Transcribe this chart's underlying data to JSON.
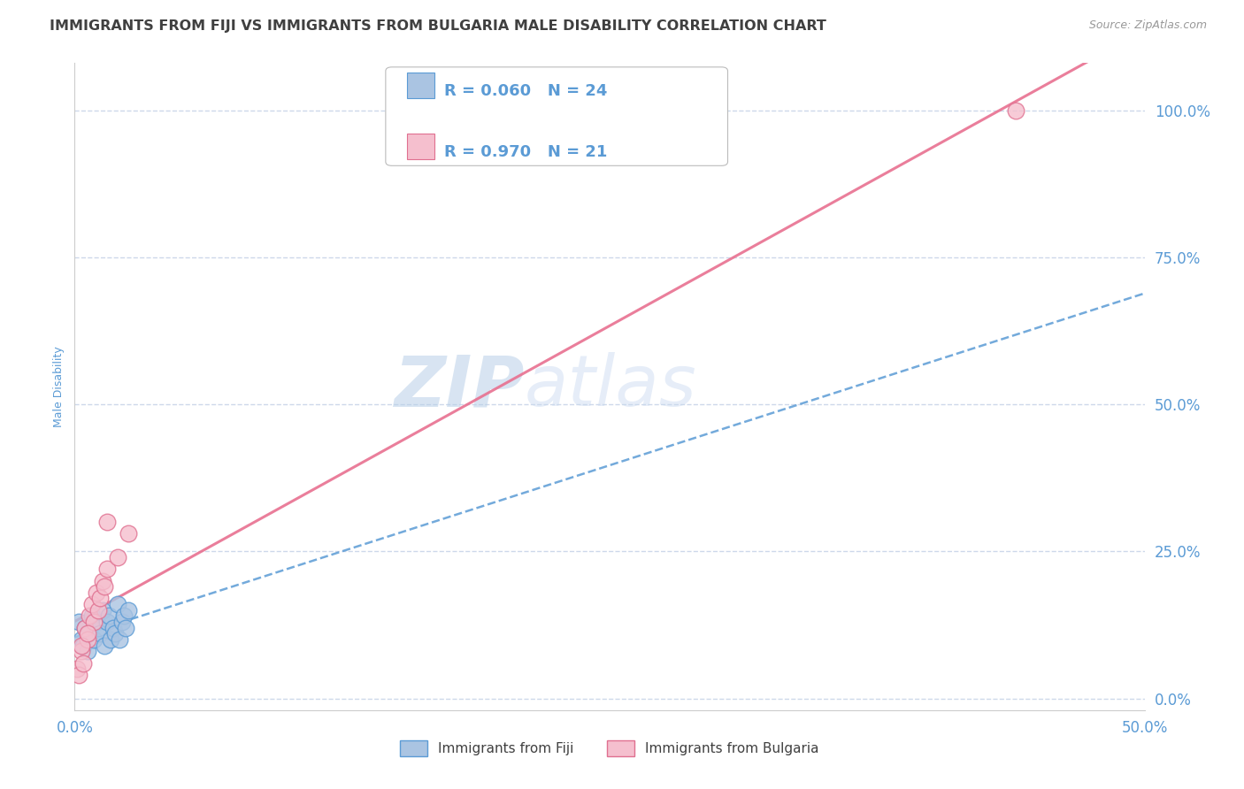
{
  "title": "IMMIGRANTS FROM FIJI VS IMMIGRANTS FROM BULGARIA MALE DISABILITY CORRELATION CHART",
  "source": "Source: ZipAtlas.com",
  "ylabel": "Male Disability",
  "xlim": [
    0.0,
    0.5
  ],
  "ylim": [
    -0.02,
    1.08
  ],
  "fiji_R": 0.06,
  "fiji_N": 24,
  "bulgaria_R": 0.97,
  "bulgaria_N": 21,
  "fiji_color": "#aac4e2",
  "fiji_edge_color": "#5b9bd5",
  "fiji_line_color": "#5b9bd5",
  "bulgaria_color": "#f5bfce",
  "bulgaria_edge_color": "#e07090",
  "bulgaria_line_color": "#e87090",
  "background_color": "#ffffff",
  "title_color": "#404040",
  "source_color": "#999999",
  "axis_label_color": "#5b9bd5",
  "tick_color": "#5b9bd5",
  "grid_color": "#c8d4e8",
  "title_fontsize": 11.5,
  "axis_label_fontsize": 9,
  "tick_fontsize": 12,
  "legend_R_color": "#5b9bd5",
  "watermark_zip": "ZIP",
  "watermark_atlas": "atlas",
  "fiji_points_x": [
    0.002,
    0.003,
    0.004,
    0.005,
    0.006,
    0.007,
    0.008,
    0.009,
    0.01,
    0.011,
    0.012,
    0.013,
    0.014,
    0.015,
    0.016,
    0.017,
    0.018,
    0.019,
    0.02,
    0.021,
    0.022,
    0.023,
    0.024,
    0.025
  ],
  "fiji_points_y": [
    0.13,
    0.1,
    0.09,
    0.12,
    0.08,
    0.11,
    0.14,
    0.1,
    0.13,
    0.12,
    0.11,
    0.15,
    0.09,
    0.13,
    0.14,
    0.1,
    0.12,
    0.11,
    0.16,
    0.1,
    0.13,
    0.14,
    0.12,
    0.15
  ],
  "bulgaria_points_x": [
    0.001,
    0.002,
    0.003,
    0.004,
    0.005,
    0.006,
    0.007,
    0.008,
    0.009,
    0.01,
    0.011,
    0.012,
    0.013,
    0.014,
    0.015,
    0.02,
    0.025,
    0.003,
    0.006,
    0.015,
    0.44
  ],
  "bulgaria_points_y": [
    0.05,
    0.04,
    0.08,
    0.06,
    0.12,
    0.1,
    0.14,
    0.16,
    0.13,
    0.18,
    0.15,
    0.17,
    0.2,
    0.19,
    0.22,
    0.24,
    0.28,
    0.09,
    0.11,
    0.3,
    1.0
  ],
  "y_ticks": [
    0.0,
    0.25,
    0.5,
    0.75,
    1.0
  ],
  "x_ticks": [
    0.0,
    0.5
  ]
}
